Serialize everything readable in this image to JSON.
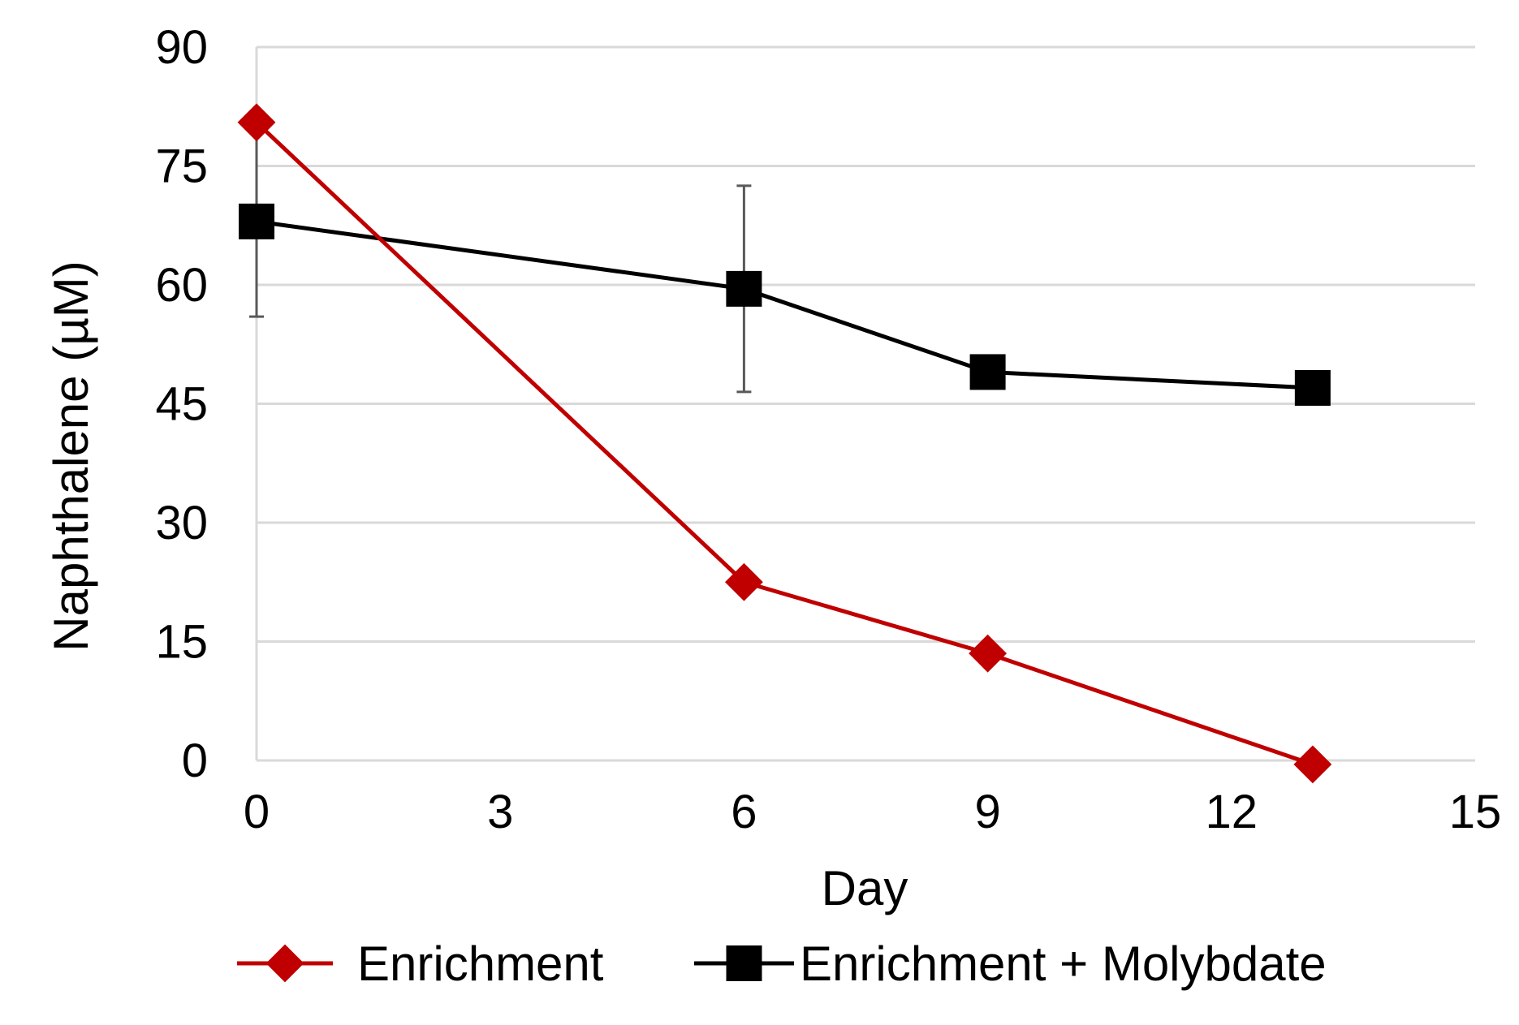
{
  "chart_data": {
    "type": "line",
    "title": "",
    "xlabel": "Day",
    "ylabel": "Naphthalene (µM)",
    "xlim": [
      0,
      15
    ],
    "ylim": [
      0,
      90
    ],
    "xticks": [
      0,
      3,
      6,
      9,
      12,
      15
    ],
    "yticks": [
      0,
      15,
      30,
      45,
      60,
      75,
      90
    ],
    "xtick_labels": [
      "0",
      "3",
      "6",
      "9",
      "12",
      "15"
    ],
    "ytick_labels": [
      "0",
      "15",
      "30",
      "45",
      "60",
      "75",
      "90"
    ],
    "grid": "horizontal",
    "legend_position": "bottom",
    "series": [
      {
        "name": "Enrichment",
        "color": "#C00000",
        "marker": "diamond",
        "x": [
          0,
          6,
          9,
          13
        ],
        "y": [
          80.5,
          22.5,
          13.5,
          -0.5
        ],
        "err": [
          null,
          null,
          null,
          null
        ]
      },
      {
        "name": "Enrichment + Molybdate",
        "color": "#000000",
        "marker": "square",
        "x": [
          0,
          6,
          9,
          13
        ],
        "y": [
          68,
          59.5,
          49,
          47
        ],
        "err": [
          12,
          13,
          null,
          null
        ]
      }
    ]
  }
}
